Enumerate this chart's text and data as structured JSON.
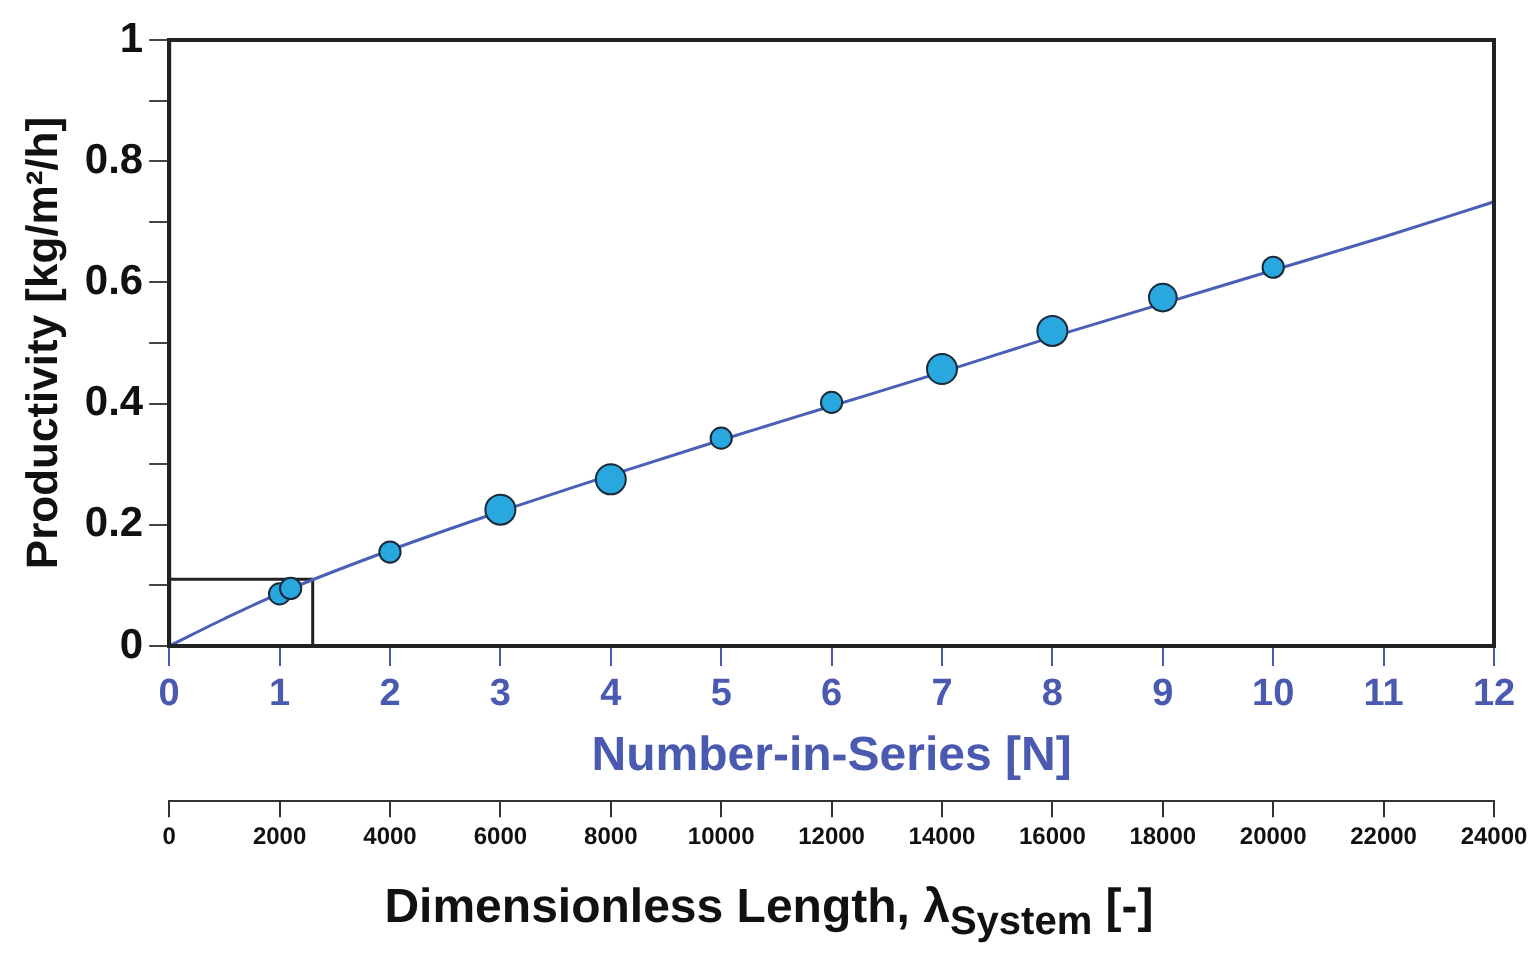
{
  "chart_data": {
    "type": "bubble",
    "xlabel": "Number-in-Series [N]",
    "ylabel": "Productivity [kg/m²/h]",
    "x2label": "Dimensionless Length, λ$_{System}$ [-]",
    "xlim": [
      0,
      12
    ],
    "xticks": [
      0,
      1,
      2,
      3,
      4,
      5,
      6,
      7,
      8,
      9,
      10,
      11,
      12
    ],
    "x2lim": [
      0,
      24000
    ],
    "x2ticks": [
      0,
      2000,
      4000,
      6000,
      8000,
      10000,
      12000,
      14000,
      16000,
      18000,
      20000,
      22000,
      24000
    ],
    "ylim": [
      0,
      1
    ],
    "yticks": [
      0,
      {
        "value": 0.1,
        "label": null
      },
      0.2,
      {
        "value": 0.3,
        "label": null
      },
      0.4,
      {
        "value": 0.5,
        "label": null
      },
      0.6,
      {
        "value": 0.7,
        "label": null
      },
      0.8,
      {
        "value": 0.9,
        "label": null
      },
      1
    ],
    "grid": false,
    "legend": false,
    "marker": "circle",
    "series": [
      {
        "type": "line",
        "marker": "none",
        "color": "#4a5fb5",
        "x": [
          0,
          0.5,
          1,
          2,
          3,
          4,
          5,
          6,
          7,
          8,
          9,
          10,
          11,
          12
        ],
        "values": [
          0,
          0.045,
          0.087,
          0.158,
          0.222,
          0.282,
          0.34,
          0.396,
          0.452,
          0.51,
          0.565,
          0.62,
          0.675,
          0.733
        ]
      },
      {
        "type": "line",
        "marker": "none",
        "color": "#222222",
        "x": [
          0,
          1.3,
          1.3
        ],
        "values": [
          0.11,
          0.11,
          0
        ]
      },
      {
        "color": "#29a8e0",
        "x": [
          1,
          1.1,
          2,
          3,
          4,
          5,
          6,
          7,
          8,
          9,
          10
        ],
        "values": [
          0.086,
          0.095,
          0.155,
          0.225,
          0.275,
          0.343,
          0.402,
          0.457,
          0.52,
          0.575,
          0.625
        ],
        "sizes": [
          0.5,
          0.5,
          0.5,
          1,
          1,
          0.5,
          0.5,
          1,
          1,
          0.85,
          0.5
        ]
      }
    ]
  }
}
